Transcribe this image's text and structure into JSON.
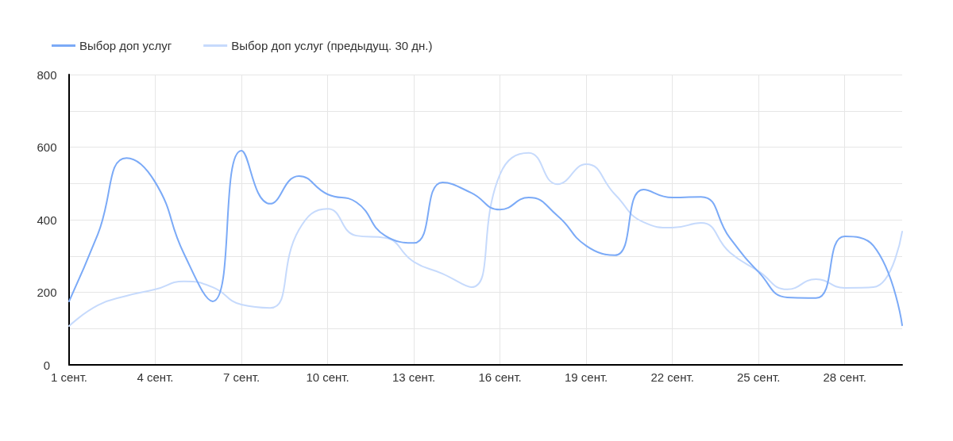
{
  "chart_data": {
    "type": "line",
    "categories": [
      "1 сент.",
      null,
      null,
      "4 сент.",
      null,
      null,
      "7 сент.",
      null,
      null,
      "10 сент.",
      null,
      null,
      "13 сент.",
      null,
      null,
      "16 сент.",
      null,
      null,
      "19 сент.",
      null,
      null,
      "22 сент.",
      null,
      null,
      "25 сент.",
      null,
      null,
      "28 сент.",
      null,
      null
    ],
    "series": [
      {
        "name": "Выбор доп услуг",
        "color": "#7baaf7",
        "values": [
          175,
          360,
          570,
          503,
          306,
          175,
          590,
          444,
          520,
          470,
          448,
          356,
          336,
          503,
          474,
          428,
          461,
          411,
          328,
          302,
          483,
          461,
          463,
          350,
          256,
          186,
          184,
          354,
          328,
          109
        ]
      },
      {
        "name": "Выбор доп услуг (предыдущ. 30 дн.)",
        "color": "#c6dafc",
        "values": [
          107,
          164,
          190,
          208,
          230,
          214,
          166,
          157,
          372,
          430,
          356,
          350,
          284,
          251,
          214,
          525,
          584,
          498,
          553,
          470,
          393,
          378,
          391,
          310,
          258,
          208,
          236,
          212,
          214,
          367
        ]
      }
    ],
    "ylim": [
      0,
      800
    ],
    "yticks": [
      0,
      {
        "value": 100,
        "label": null
      },
      200,
      {
        "value": 300,
        "label": null
      },
      400,
      {
        "value": 500,
        "label": null
      },
      600,
      {
        "value": 700,
        "label": null
      },
      800
    ],
    "grid": true,
    "legend": "top left",
    "marker": "none",
    "line_style": "solid"
  }
}
